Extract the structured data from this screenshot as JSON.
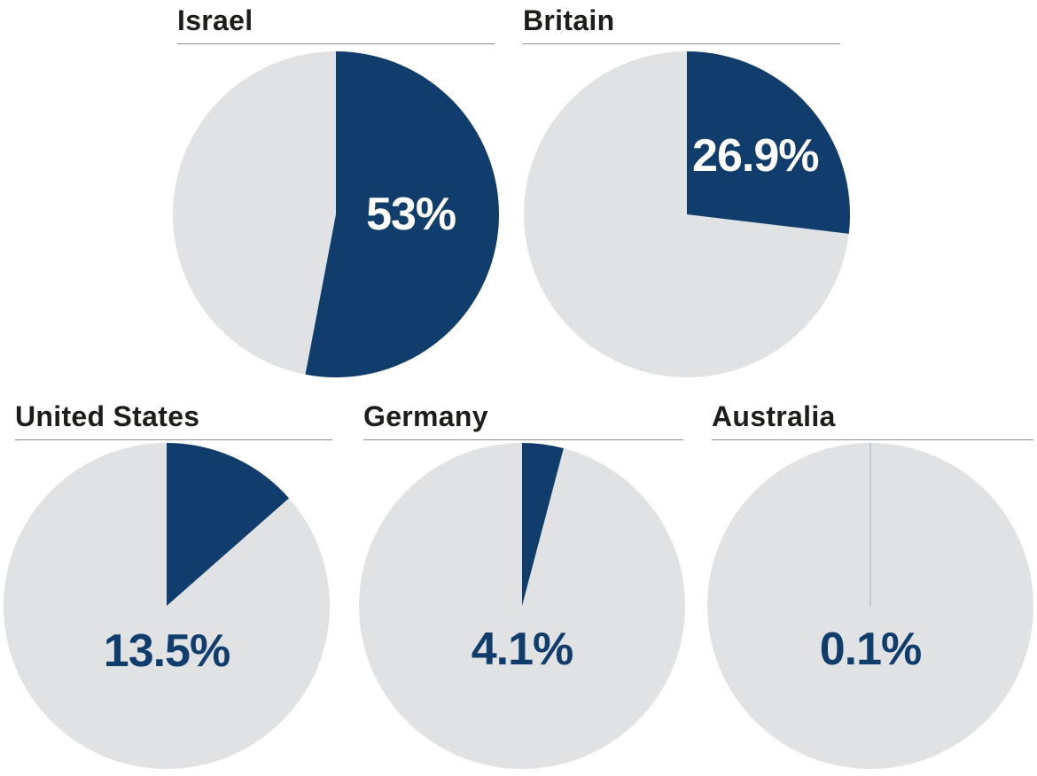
{
  "page": {
    "background": "#FFFFFF"
  },
  "colors": {
    "slice_navy": "#103D6B",
    "pie_remainder_gray": "#E1E2E4",
    "title_text": "#1D1D1B",
    "title_rule": "#8C8C8C",
    "hairline": "#A9B6C4",
    "label_on_slice": "#FFFFFF",
    "label_on_gray": "#103D6B"
  },
  "chart_data": {
    "type": "pie",
    "unit": "%",
    "layout": "grid: 2 pies top row, 3 pies bottom row; slices start at 12 o'clock and sweep clockwise",
    "pies": [
      {
        "country": "Israel",
        "value": 53,
        "label": "53%",
        "label_color": "#FFFFFF",
        "label_position": "inside-slice-right"
      },
      {
        "country": "Britain",
        "value": 26.9,
        "label": "26.9%",
        "label_color": "#FFFFFF",
        "label_position": "inside-slice-upper-right"
      },
      {
        "country": "United States",
        "value": 13.5,
        "label": "13.5%",
        "label_color": "#103D6B",
        "label_position": "on-gray-below-center"
      },
      {
        "country": "Germany",
        "value": 4.1,
        "label": "4.1%",
        "label_color": "#103D6B",
        "label_position": "on-gray-below-center"
      },
      {
        "country": "Australia",
        "value": 0.1,
        "label": "0.1%",
        "label_color": "#103D6B",
        "label_position": "on-gray-below-center"
      }
    ]
  }
}
